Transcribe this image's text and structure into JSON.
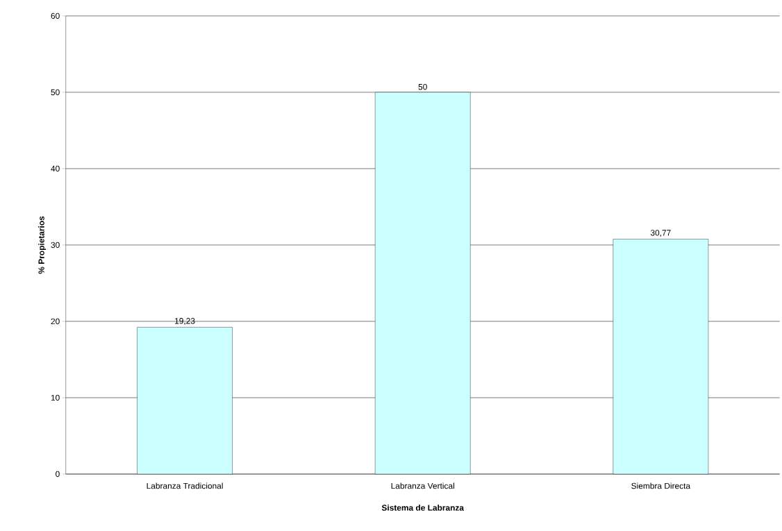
{
  "chart_data": {
    "type": "bar",
    "xlabel": "Sistema de Labranza",
    "ylabel": "% Propietarios",
    "categories": [
      "Labranza Tradicional",
      "Labranza Vertical",
      "Siembra Directa"
    ],
    "values": [
      19.23,
      50,
      30.77
    ],
    "value_labels": [
      "19,23",
      "50",
      "30,77"
    ],
    "color": "#ccffff",
    "ylim": [
      0,
      60
    ],
    "yticks": [
      0,
      10,
      20,
      30,
      40,
      50,
      60
    ],
    "grid": "y"
  }
}
